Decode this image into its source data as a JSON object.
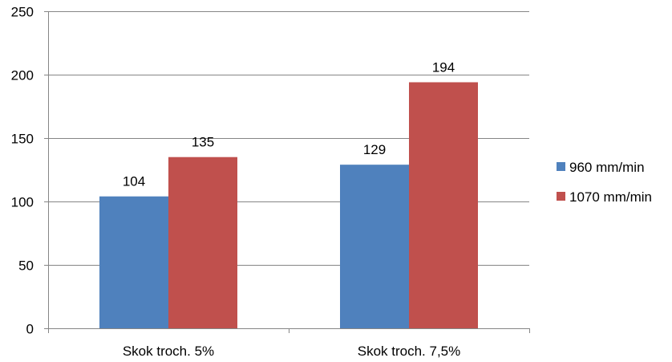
{
  "chart_data": {
    "type": "bar",
    "title": "",
    "xlabel": "",
    "ylabel": "",
    "categories": [
      "Skok troch. 5%",
      "Skok troch. 7,5%"
    ],
    "series": [
      {
        "name": "960 mm/min",
        "values": [
          104,
          129
        ],
        "color": "#4F81BD"
      },
      {
        "name": "1070 mm/min",
        "values": [
          135,
          194
        ],
        "color": "#C0504D"
      }
    ],
    "ylim": [
      0,
      250
    ],
    "yticks": [
      0,
      50,
      100,
      150,
      200,
      250
    ],
    "grid": true,
    "legend": "right",
    "data_labels": true
  }
}
